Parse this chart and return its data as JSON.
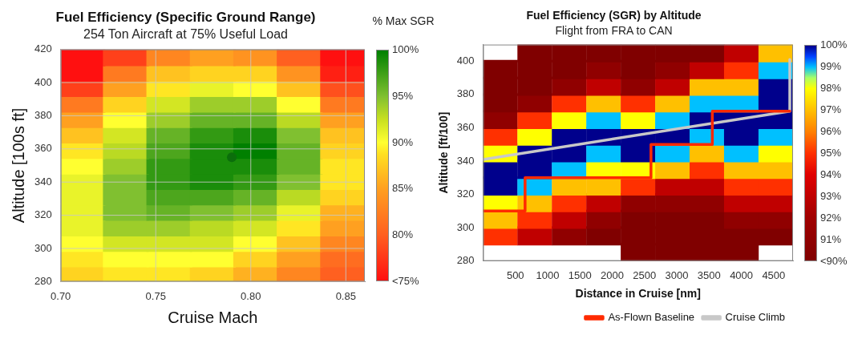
{
  "chart_data": [
    {
      "type": "heatmap",
      "title": "Fuel Efficiency (Specific Ground Range)",
      "subtitle": "254 Ton Aircraft at 75% Useful Load",
      "xlabel": "Cruise Mach",
      "ylabel": "Altitude [100s ft]",
      "clabel": "% Max SGR",
      "xlim": [
        0.7,
        0.86
      ],
      "xticks": [
        {
          "value": 0.7,
          "label": "0.70"
        },
        {
          "value": 0.75,
          "label": "0.75"
        },
        {
          "value": 0.8,
          "label": "0.80"
        },
        {
          "value": 0.85,
          "label": "0.85"
        }
      ],
      "ylim": [
        280,
        420
      ],
      "yticks": [
        280,
        300,
        320,
        340,
        360,
        380,
        400,
        420
      ],
      "grid": true,
      "legend": false,
      "marker": "circle",
      "clim": [
        75,
        100
      ],
      "cticks": [
        {
          "value": 75,
          "label": "<75%"
        },
        {
          "value": 80,
          "label": "80%"
        },
        {
          "value": 85,
          "label": "85%"
        },
        {
          "value": 90,
          "label": "90%"
        },
        {
          "value": 95,
          "label": "95%"
        },
        {
          "value": 100,
          "label": "100%"
        }
      ],
      "cells": [
        [
          70,
          78,
          83,
          85,
          84,
          80,
          73
        ],
        [
          72,
          82,
          87,
          88,
          88,
          84,
          76
        ],
        [
          78,
          85,
          89,
          91,
          90,
          87,
          79
        ],
        [
          82,
          88,
          92,
          94,
          94,
          90,
          82
        ],
        [
          85,
          90,
          94,
          96,
          96,
          93,
          85
        ],
        [
          87,
          92,
          96,
          98,
          99,
          95,
          87
        ],
        [
          89,
          93,
          97,
          99,
          100,
          96,
          88
        ],
        [
          90,
          94,
          98,
          99,
          99,
          96,
          89
        ],
        [
          91,
          95,
          98,
          99,
          98,
          95,
          89
        ],
        [
          91,
          95,
          97,
          97,
          96,
          93,
          88
        ],
        [
          91,
          95,
          96,
          95,
          94,
          91,
          86
        ],
        [
          91,
          94,
          94,
          93,
          92,
          89,
          85
        ],
        [
          90,
          92,
          92,
          92,
          90,
          87,
          83
        ],
        [
          89,
          90,
          90,
          90,
          88,
          85,
          81
        ],
        [
          88,
          89,
          89,
          88,
          86,
          83,
          80
        ]
      ],
      "series": [
        {
          "type": "scatter",
          "color": "#0b6e0b",
          "x": [
            0.79
          ],
          "values": [
            355
          ]
        }
      ]
    },
    {
      "type": "heatmap",
      "title": "Fuel Efficiency (SGR) by Altitude",
      "subtitle": "Flight from FRA to CAN",
      "xlabel": "Distance in Cruise [nm]",
      "ylabel": "Altitude [ft/100]",
      "xlim": [
        0,
        4800
      ],
      "xticks": [
        500,
        1000,
        1500,
        2000,
        2500,
        3000,
        3500,
        4000,
        4500
      ],
      "ylim": [
        280,
        410
      ],
      "yticks": [
        280,
        300,
        320,
        340,
        360,
        380,
        400
      ],
      "legend": "bottom right",
      "marker": "none",
      "clim": [
        90,
        100
      ],
      "cticks": [
        {
          "value": 90,
          "label": "<90%"
        },
        {
          "value": 91,
          "label": "91%"
        },
        {
          "value": 92,
          "label": "92%"
        },
        {
          "value": 93,
          "label": "93%"
        },
        {
          "value": 94,
          "label": "94%"
        },
        {
          "value": 95,
          "label": "95%"
        },
        {
          "value": 96,
          "label": "96%"
        },
        {
          "value": 97,
          "label": "97%"
        },
        {
          "value": 98,
          "label": "98%"
        },
        {
          "value": 99,
          "label": "99%"
        },
        {
          "value": 100,
          "label": "100%"
        }
      ],
      "cells": [
        [
          null,
          89,
          89,
          89,
          89,
          89,
          89,
          93,
          97
        ],
        [
          89,
          89,
          89,
          91,
          89,
          91,
          93,
          95,
          99
        ],
        [
          89,
          89,
          91,
          93,
          91,
          93,
          97,
          97,
          100
        ],
        [
          89,
          91,
          95,
          97,
          95,
          97,
          99,
          99,
          100
        ],
        [
          91,
          95,
          98,
          99,
          98,
          99,
          100,
          100,
          100
        ],
        [
          95,
          98,
          100,
          100,
          100,
          100,
          99,
          100,
          99
        ],
        [
          98,
          100,
          100,
          99,
          100,
          99,
          97,
          99,
          98
        ],
        [
          100,
          100,
          99,
          98,
          98,
          97,
          95,
          97,
          97
        ],
        [
          100,
          99,
          97,
          97,
          95,
          93,
          93,
          95,
          95
        ],
        [
          98,
          97,
          95,
          93,
          91,
          91,
          91,
          93,
          93
        ],
        [
          97,
          95,
          93,
          91,
          89,
          89,
          89,
          91,
          91
        ],
        [
          95,
          93,
          91,
          89,
          89,
          89,
          89,
          89,
          89
        ],
        [
          null,
          null,
          null,
          null,
          89,
          89,
          89,
          89,
          null
        ]
      ],
      "series": [
        {
          "name": "As-Flown Baseline",
          "type": "line",
          "color": "#ff2a00",
          "x": [
            0,
            650,
            650,
            2600,
            2600,
            3550,
            3550,
            4750
          ],
          "values": [
            310,
            310,
            330,
            330,
            350,
            350,
            370,
            370
          ]
        },
        {
          "name": "Cruise Climb",
          "type": "line",
          "color": "#c8c8c8",
          "x": [
            0,
            4750,
            4750
          ],
          "values": [
            341,
            370,
            401
          ]
        }
      ]
    }
  ]
}
